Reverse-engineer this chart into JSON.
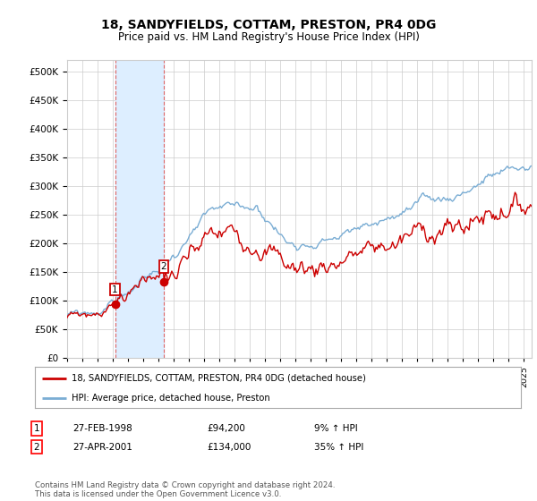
{
  "title": "18, SANDYFIELDS, COTTAM, PRESTON, PR4 0DG",
  "subtitle": "Price paid vs. HM Land Registry's House Price Index (HPI)",
  "legend_line1": "18, SANDYFIELDS, COTTAM, PRESTON, PR4 0DG (detached house)",
  "legend_line2": "HPI: Average price, detached house, Preston",
  "transaction1_date": "27-FEB-1998",
  "transaction1_price": 94200,
  "transaction1_hpi": "9% ↑ HPI",
  "transaction2_date": "27-APR-2001",
  "transaction2_price": 134000,
  "transaction2_hpi": "35% ↑ HPI",
  "red_line_color": "#cc0000",
  "blue_line_color": "#7aadd4",
  "shaded_region_color": "#ddeeff",
  "dashed_line_color": "#dd6666",
  "background_color": "#ffffff",
  "grid_color": "#cccccc",
  "footer": "Contains HM Land Registry data © Crown copyright and database right 2024.\nThis data is licensed under the Open Government Licence v3.0.",
  "xmin": 1995.0,
  "xmax": 2025.5,
  "ymin": 0,
  "ymax": 520000,
  "yticks": [
    0,
    50000,
    100000,
    150000,
    200000,
    250000,
    300000,
    350000,
    400000,
    450000,
    500000
  ],
  "xtick_years": [
    1995,
    1996,
    1997,
    1998,
    1999,
    2000,
    2001,
    2002,
    2003,
    2004,
    2005,
    2006,
    2007,
    2008,
    2009,
    2010,
    2011,
    2012,
    2013,
    2014,
    2015,
    2016,
    2017,
    2018,
    2019,
    2020,
    2021,
    2022,
    2023,
    2024,
    2025
  ],
  "transaction1_x": 1998.15,
  "transaction2_x": 2001.33
}
